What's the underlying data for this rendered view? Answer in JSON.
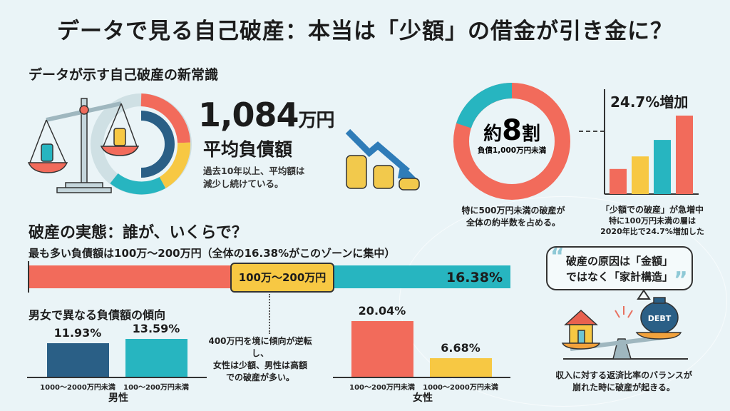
{
  "title": "データで見る自己破産：本当は「少額」の借金が引き金に？",
  "section1": {
    "heading": "データが示す自己破産の新常識",
    "average_value": "1,084",
    "average_unit": "万円",
    "average_label": "平均負債額",
    "average_caption_1": "過去10年以上、平均額は",
    "average_caption_2": "減少し続けている。",
    "donut_main_prefix": "約",
    "donut_main_number": "8",
    "donut_main_suffix": "割",
    "donut_sub": "負債1,000万円未満",
    "donut_share": 0.8,
    "donut_caption_1": "特に500万円未満の破産が",
    "donut_caption_2": "全体の約半数を占める。",
    "growth_title": "24.7%増加",
    "growth_caption_1": "「少額での破産」が急増中",
    "growth_caption_2": "特に100万円未満の層は",
    "growth_caption_3": "2020年比で24.7%増加した"
  },
  "section2": {
    "heading": "破産の実態：誰が、いくらで？",
    "subheading": "最も多い負債額は100万〜200万円（全体の16.38%がこのゾーンに集中）",
    "range_label": "100万〜200万円",
    "range_pct": "16.38%",
    "gender_heading": "男女で異なる負債額の傾向",
    "middle_caption_1": "400万円を境に傾向が逆転し、",
    "middle_caption_2": "女性は少額、男性は高額",
    "middle_caption_3": "での破産が多い。"
  },
  "section3": {
    "quote_line_1": "破産の原因は「金額」",
    "quote_line_2": "ではなく「家計構造」",
    "bag_label": "DEBT",
    "caption_1": "収入に対する返済比率のバランスが",
    "caption_2": "崩れた時に破産が起きる。"
  },
  "colors": {
    "coral": "#f26b5b",
    "teal": "#27b5c0",
    "navy": "#2a5f86",
    "yellow": "#f7c843",
    "background": "#eaf4f7"
  },
  "chart_data": [
    {
      "type": "bar",
      "title": "24.7%増加",
      "categories": [
        "",
        "",
        "",
        ""
      ],
      "values": [
        32,
        48,
        69,
        100
      ],
      "colors": [
        "#f26b5b",
        "#f7c843",
        "#27b5c0",
        "#f26b5b"
      ]
    },
    {
      "type": "bar",
      "group": "男性",
      "categories": [
        "1000〜2000万円未満",
        "100〜200万円未満"
      ],
      "values": [
        11.93,
        13.59
      ],
      "labels": [
        "11.93%",
        "13.59%"
      ],
      "colors": [
        "#2a5f86",
        "#27b5c0"
      ]
    },
    {
      "type": "bar",
      "group": "女性",
      "categories": [
        "100〜200万円未満",
        "1000〜2000万円未満"
      ],
      "values": [
        20.04,
        6.68
      ],
      "labels": [
        "20.04%",
        "6.68%"
      ],
      "colors": [
        "#f26b5b",
        "#f7c843"
      ]
    }
  ]
}
